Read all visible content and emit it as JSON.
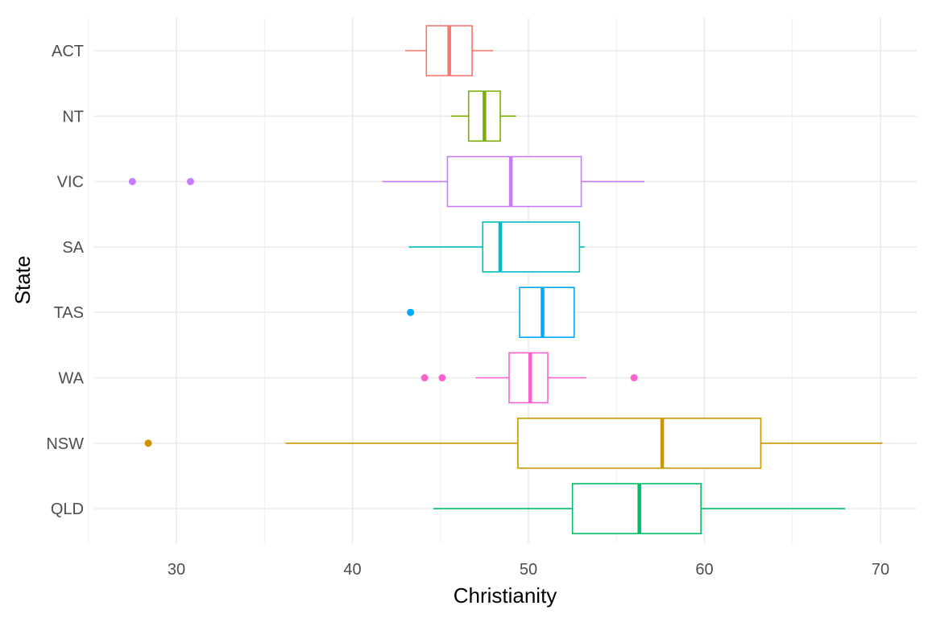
{
  "chart_data": {
    "type": "boxplot",
    "orientation": "horizontal",
    "xlabel": "Christianity",
    "ylabel": "State",
    "xlim": [
      25,
      72.5
    ],
    "x_ticks": [
      30,
      40,
      50,
      60,
      70
    ],
    "grid": true,
    "legend": "none",
    "categories": [
      "ACT",
      "NT",
      "VIC",
      "SA",
      "TAS",
      "WA",
      "NSW",
      "QLD"
    ],
    "boxes": [
      {
        "label": "ACT",
        "color": "#F8766D",
        "whisker_low": 43.0,
        "q1": 44.2,
        "median": 45.5,
        "q3": 46.8,
        "whisker_high": 48.0,
        "outliers": []
      },
      {
        "label": "NT",
        "color": "#7CAE00",
        "whisker_low": 45.6,
        "q1": 46.6,
        "median": 47.5,
        "q3": 48.4,
        "whisker_high": 49.3,
        "outliers": []
      },
      {
        "label": "VIC",
        "color": "#C77CFF",
        "whisker_low": 41.7,
        "q1": 45.4,
        "median": 49.0,
        "q3": 53.0,
        "whisker_high": 56.6,
        "outliers": [
          27.5,
          30.8
        ]
      },
      {
        "label": "SA",
        "color": "#00BFC4",
        "whisker_low": 43.2,
        "q1": 47.4,
        "median": 48.4,
        "q3": 52.9,
        "whisker_high": 53.2,
        "outliers": []
      },
      {
        "label": "TAS",
        "color": "#00A9FF",
        "whisker_low": 49.5,
        "q1": 49.5,
        "median": 50.8,
        "q3": 52.6,
        "whisker_high": 52.6,
        "outliers": [
          43.3
        ]
      },
      {
        "label": "WA",
        "color": "#FF61CC",
        "whisker_low": 47.0,
        "q1": 48.9,
        "median": 50.1,
        "q3": 51.1,
        "whisker_high": 53.3,
        "outliers": [
          44.1,
          45.1,
          56.0
        ]
      },
      {
        "label": "NSW",
        "color": "#CD9600",
        "whisker_low": 36.2,
        "q1": 49.4,
        "median": 57.6,
        "q3": 63.2,
        "whisker_high": 70.1,
        "outliers": [
          28.4
        ]
      },
      {
        "label": "QLD",
        "color": "#00BE67",
        "whisker_low": 44.6,
        "q1": 52.5,
        "median": 56.3,
        "q3": 59.8,
        "whisker_high": 68.0,
        "outliers": []
      }
    ]
  }
}
